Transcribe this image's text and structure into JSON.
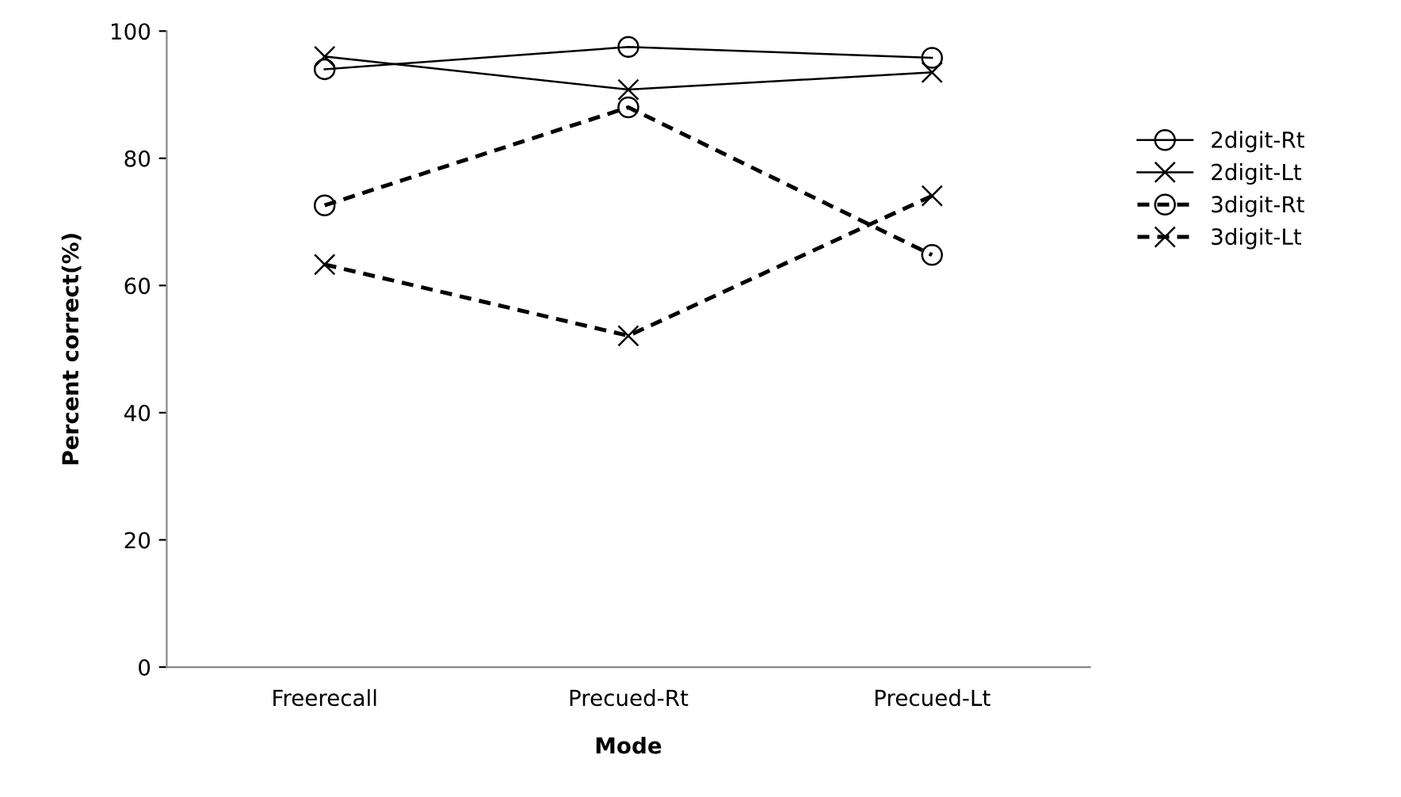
{
  "chart_data": {
    "type": "line",
    "xlabel": "Mode",
    "ylabel": "Percent correct(%)",
    "categories": [
      "Freerecall",
      "Precued-Rt",
      "Precued-Lt"
    ],
    "series": [
      {
        "name": "2digit-Rt",
        "color": "#000000",
        "values": [
          94.0,
          97.5,
          95.8
        ],
        "marker": "circle",
        "line_style": "solid"
      },
      {
        "name": "2digit-Lt",
        "color": "#000000",
        "values": [
          96.0,
          90.8,
          93.5
        ],
        "marker": "cross",
        "line_style": "solid"
      },
      {
        "name": "3digit-Rt",
        "color": "#000000",
        "values": [
          72.6,
          88.0,
          64.8
        ],
        "marker": "circle",
        "line_style": "dashed"
      },
      {
        "name": "3digit-Lt",
        "color": "#000000",
        "values": [
          63.3,
          52.1,
          74.1
        ],
        "marker": "cross",
        "line_style": "dashed"
      }
    ],
    "ylim": [
      0,
      100
    ],
    "yticks": [
      0,
      20,
      40,
      60,
      80,
      100
    ],
    "grid": false,
    "legend": "right"
  }
}
